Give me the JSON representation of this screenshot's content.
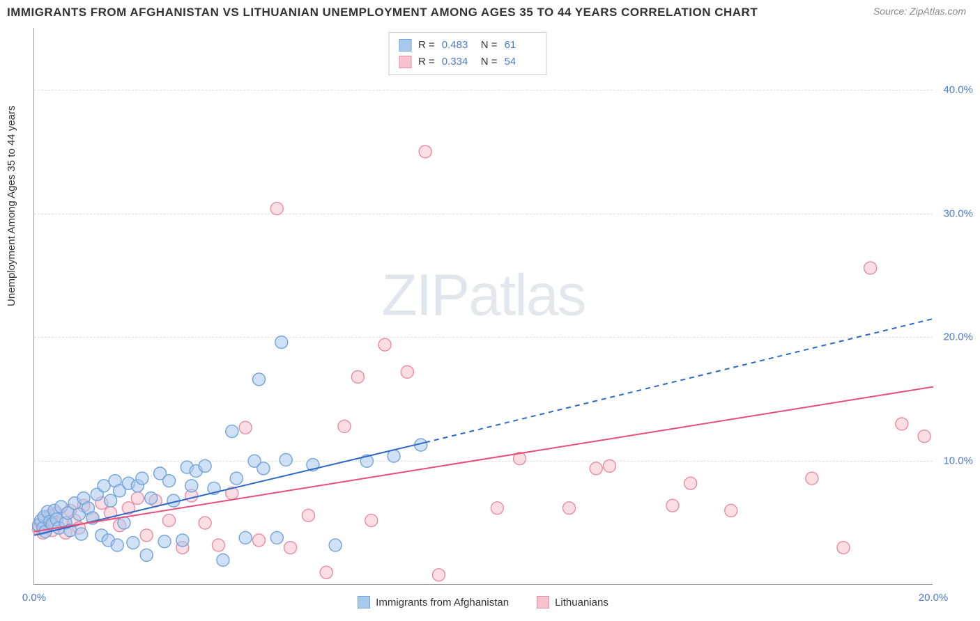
{
  "title": "IMMIGRANTS FROM AFGHANISTAN VS LITHUANIAN UNEMPLOYMENT AMONG AGES 35 TO 44 YEARS CORRELATION CHART",
  "source": "Source: ZipAtlas.com",
  "y_axis_label": "Unemployment Among Ages 35 to 44 years",
  "watermark_bold": "ZIP",
  "watermark_thin": "atlas",
  "chart": {
    "type": "scatter",
    "xlim": [
      0,
      20
    ],
    "ylim": [
      0,
      45
    ],
    "x_ticks": [
      {
        "val": 0,
        "label": "0.0%"
      },
      {
        "val": 20,
        "label": "20.0%"
      }
    ],
    "y_ticks": [
      {
        "val": 10,
        "label": "10.0%"
      },
      {
        "val": 20,
        "label": "20.0%"
      },
      {
        "val": 30,
        "label": "30.0%"
      },
      {
        "val": 40,
        "label": "40.0%"
      }
    ],
    "grid_color": "#dddddd",
    "background_color": "#ffffff",
    "series": [
      {
        "name": "Immigrants from Afghanistan",
        "color_fill": "#a9c9ec",
        "color_stroke": "#6fa3db",
        "r_value": "0.483",
        "n_value": "61",
        "marker_radius": 9,
        "trend": {
          "x1": 0,
          "y1": 4.0,
          "x2": 8.7,
          "y2": 11.5,
          "x2_dash": 20,
          "y2_dash": 21.5,
          "color": "#2d68c4",
          "width": 2
        },
        "points": [
          [
            0.1,
            4.8
          ],
          [
            0.15,
            5.2
          ],
          [
            0.2,
            4.6
          ],
          [
            0.22,
            5.5
          ],
          [
            0.25,
            4.3
          ],
          [
            0.3,
            5.9
          ],
          [
            0.35,
            5.1
          ],
          [
            0.4,
            4.9
          ],
          [
            0.45,
            6.0
          ],
          [
            0.5,
            5.3
          ],
          [
            0.55,
            4.6
          ],
          [
            0.6,
            6.3
          ],
          [
            0.7,
            5.0
          ],
          [
            0.75,
            5.8
          ],
          [
            0.8,
            4.4
          ],
          [
            0.9,
            6.6
          ],
          [
            1.0,
            5.7
          ],
          [
            1.05,
            4.1
          ],
          [
            1.1,
            7.0
          ],
          [
            1.2,
            6.2
          ],
          [
            1.3,
            5.4
          ],
          [
            1.4,
            7.3
          ],
          [
            1.5,
            4.0
          ],
          [
            1.55,
            8.0
          ],
          [
            1.65,
            3.6
          ],
          [
            1.7,
            6.8
          ],
          [
            1.8,
            8.4
          ],
          [
            1.85,
            3.2
          ],
          [
            1.9,
            7.6
          ],
          [
            2.0,
            5.0
          ],
          [
            2.1,
            8.2
          ],
          [
            2.2,
            3.4
          ],
          [
            2.3,
            8.0
          ],
          [
            2.4,
            8.6
          ],
          [
            2.5,
            2.4
          ],
          [
            2.6,
            7.0
          ],
          [
            2.8,
            9.0
          ],
          [
            2.9,
            3.5
          ],
          [
            3.0,
            8.4
          ],
          [
            3.1,
            6.8
          ],
          [
            3.3,
            3.6
          ],
          [
            3.4,
            9.5
          ],
          [
            3.5,
            8.0
          ],
          [
            3.6,
            9.2
          ],
          [
            3.8,
            9.6
          ],
          [
            4.0,
            7.8
          ],
          [
            4.2,
            2.0
          ],
          [
            4.4,
            12.4
          ],
          [
            4.5,
            8.6
          ],
          [
            4.7,
            3.8
          ],
          [
            4.9,
            10.0
          ],
          [
            5.0,
            16.6
          ],
          [
            5.1,
            9.4
          ],
          [
            5.4,
            3.8
          ],
          [
            5.5,
            19.6
          ],
          [
            5.6,
            10.1
          ],
          [
            6.2,
            9.7
          ],
          [
            6.7,
            3.2
          ],
          [
            7.4,
            10.0
          ],
          [
            8.0,
            10.4
          ],
          [
            8.6,
            11.3
          ]
        ]
      },
      {
        "name": "Lithuanians",
        "color_fill": "#f5c2ce",
        "color_stroke": "#e98ba5",
        "r_value": "0.334",
        "n_value": "54",
        "marker_radius": 9,
        "trend": {
          "x1": 0,
          "y1": 4.3,
          "x2": 20,
          "y2": 16.0,
          "color": "#e84c7a",
          "width": 2
        },
        "points": [
          [
            0.1,
            4.5
          ],
          [
            0.15,
            5.0
          ],
          [
            0.2,
            4.2
          ],
          [
            0.25,
            5.4
          ],
          [
            0.3,
            4.8
          ],
          [
            0.35,
            5.6
          ],
          [
            0.4,
            4.4
          ],
          [
            0.5,
            5.8
          ],
          [
            0.6,
            5.0
          ],
          [
            0.7,
            4.2
          ],
          [
            0.8,
            6.0
          ],
          [
            0.9,
            5.2
          ],
          [
            1.0,
            4.6
          ],
          [
            1.1,
            6.4
          ],
          [
            1.3,
            5.4
          ],
          [
            1.5,
            6.6
          ],
          [
            1.7,
            5.8
          ],
          [
            1.9,
            4.8
          ],
          [
            2.1,
            6.2
          ],
          [
            2.3,
            7.0
          ],
          [
            2.5,
            4.0
          ],
          [
            2.7,
            6.8
          ],
          [
            3.0,
            5.2
          ],
          [
            3.3,
            3.0
          ],
          [
            3.5,
            7.2
          ],
          [
            3.8,
            5.0
          ],
          [
            4.1,
            3.2
          ],
          [
            4.4,
            7.4
          ],
          [
            4.7,
            12.7
          ],
          [
            5.0,
            3.6
          ],
          [
            5.4,
            30.4
          ],
          [
            5.7,
            3.0
          ],
          [
            6.1,
            5.6
          ],
          [
            6.5,
            1.0
          ],
          [
            6.9,
            12.8
          ],
          [
            7.2,
            16.8
          ],
          [
            7.5,
            5.2
          ],
          [
            7.8,
            19.4
          ],
          [
            8.3,
            17.2
          ],
          [
            8.7,
            35.0
          ],
          [
            9.0,
            0.8
          ],
          [
            10.3,
            6.2
          ],
          [
            10.8,
            10.2
          ],
          [
            11.9,
            6.2
          ],
          [
            12.5,
            9.4
          ],
          [
            12.8,
            9.6
          ],
          [
            14.2,
            6.4
          ],
          [
            14.6,
            8.2
          ],
          [
            15.5,
            6.0
          ],
          [
            17.3,
            8.6
          ],
          [
            18.0,
            3.0
          ],
          [
            18.6,
            25.6
          ],
          [
            19.3,
            13.0
          ],
          [
            19.8,
            12.0
          ]
        ]
      }
    ]
  },
  "legend_bottom": [
    {
      "label": "Immigrants from Afghanistan",
      "fill": "#a9c9ec",
      "stroke": "#6fa3db"
    },
    {
      "label": "Lithuanians",
      "fill": "#f5c2ce",
      "stroke": "#e98ba5"
    }
  ]
}
